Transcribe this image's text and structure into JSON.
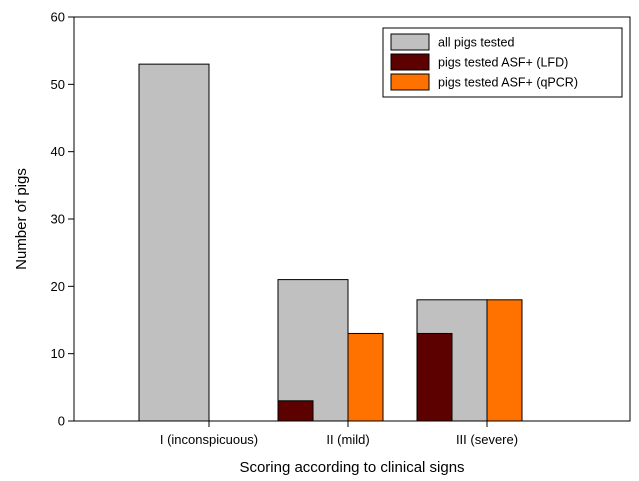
{
  "chart_data": {
    "type": "bar",
    "title": "",
    "xlabel": "Scoring according to clinical signs",
    "ylabel": "Number of pigs",
    "ylim": [
      0,
      60
    ],
    "yticks": [
      0,
      10,
      20,
      30,
      40,
      50,
      60
    ],
    "grid": false,
    "legend_position": "top-right",
    "categories": [
      "I (inconspicuous)",
      "II (mild)",
      "III (severe)"
    ],
    "series": [
      {
        "name": "all pigs tested",
        "values": [
          53,
          21,
          18
        ],
        "color": "#c0c0c0"
      },
      {
        "name": "pigs tested ASF+ (LFD)",
        "values": [
          0,
          3,
          13
        ],
        "color": "#5c0000"
      },
      {
        "name": "pigs tested ASF+ (qPCR)",
        "values": [
          0,
          13,
          18
        ],
        "color": "#ff7200"
      }
    ],
    "note_bars": "LFD bars are drawn overlaid on the left half of the 'all pigs tested' bars"
  }
}
